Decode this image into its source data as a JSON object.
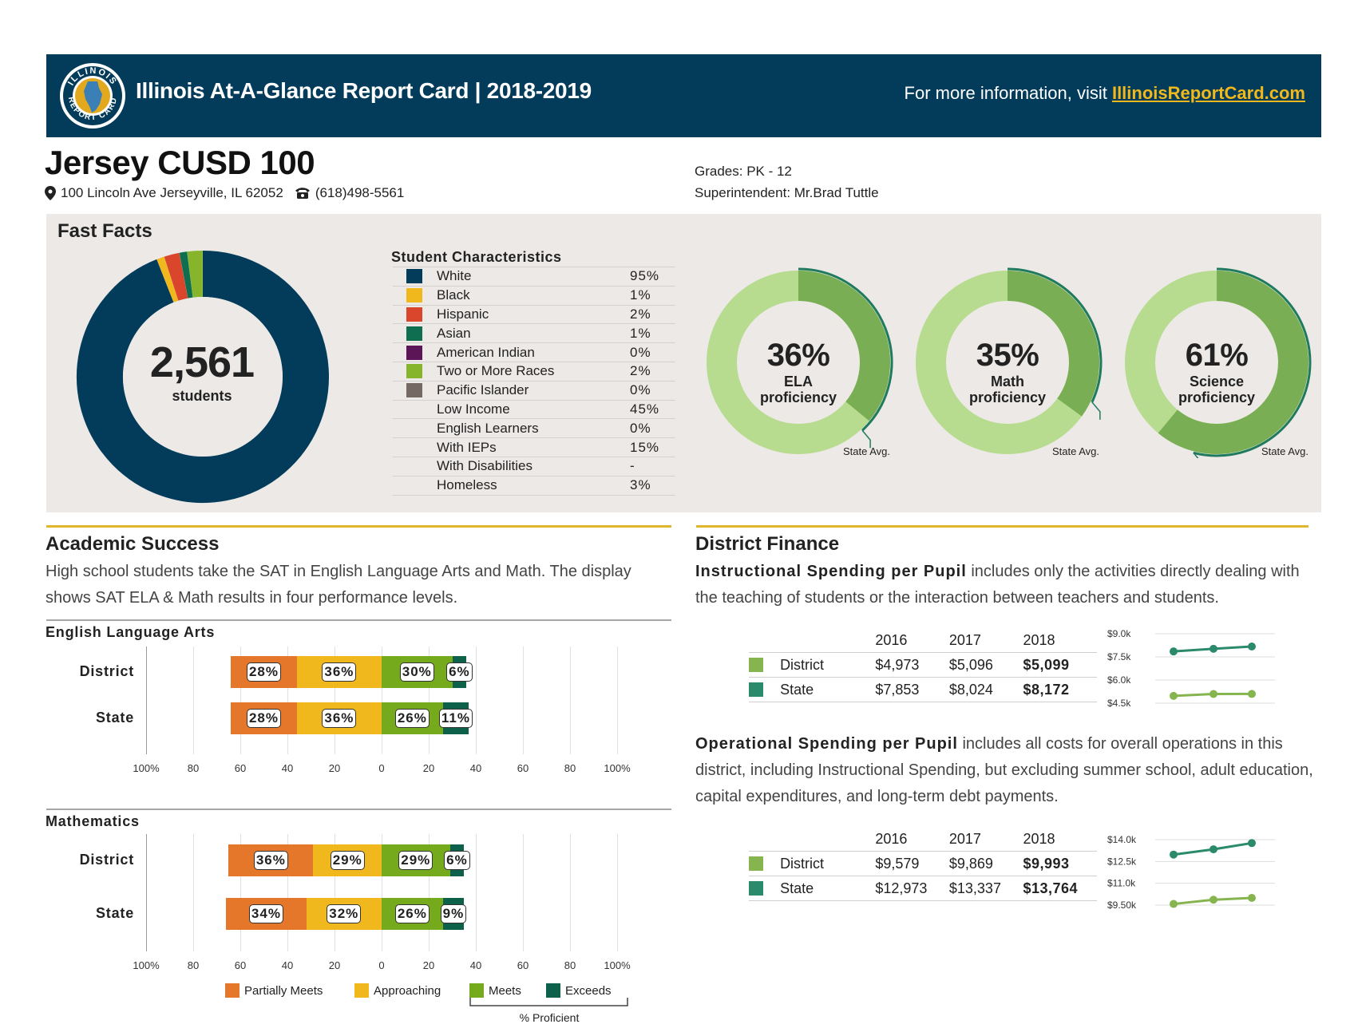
{
  "header": {
    "title": "Illinois At-A-Glance Report Card  |  2018-2019",
    "info_prefix": "For more information, visit ",
    "info_link": "IllinoisReportCard.com",
    "seal_top_text": "ILLINOIS",
    "seal_bottom_text": "REPORT CARD"
  },
  "district": {
    "name": "Jersey CUSD 100",
    "address": "100 Lincoln Ave Jerseyville, IL 62052",
    "phone": "(618)498-5561",
    "grades": "Grades: PK - 12",
    "superintendent": "Superintendent: Mr.Brad Tuttle"
  },
  "fast_facts": {
    "title": "Fast Facts",
    "enrollment": "2,561",
    "enrollment_label": "students",
    "characteristics_title": "Student Characteristics",
    "characteristics": [
      {
        "label": "White",
        "value": "95%",
        "color": "#033c5a"
      },
      {
        "label": "Black",
        "value": "1%",
        "color": "#f0b81c"
      },
      {
        "label": "Hispanic",
        "value": "2%",
        "color": "#d9462b"
      },
      {
        "label": "Asian",
        "value": "1%",
        "color": "#0f6e4f"
      },
      {
        "label": "American Indian",
        "value": "0%",
        "color": "#5c1557"
      },
      {
        "label": "Two or More Races",
        "value": "2%",
        "color": "#86b52b"
      },
      {
        "label": "Pacific Islander",
        "value": "0%",
        "color": "#756a63"
      },
      {
        "label": "Low Income",
        "value": "45%",
        "color": ""
      },
      {
        "label": "English Learners",
        "value": "0%",
        "color": ""
      },
      {
        "label": "With IEPs",
        "value": "15%",
        "color": ""
      },
      {
        "label": "With Disabilities",
        "value": "-",
        "color": ""
      },
      {
        "label": "Homeless",
        "value": "3%",
        "color": ""
      }
    ],
    "proficiency": [
      {
        "pct": "36%",
        "line1": "ELA",
        "line2": "proficiency",
        "value": 36,
        "state_avg": 38,
        "state_label": "State Avg."
      },
      {
        "pct": "35%",
        "line1": "Math",
        "line2": "proficiency",
        "value": 35,
        "state_avg": 32,
        "state_label": "State Avg."
      },
      {
        "pct": "61%",
        "line1": "Science",
        "line2": "proficiency",
        "value": 61,
        "state_avg": 54,
        "state_label": "State Avg."
      }
    ]
  },
  "academic": {
    "title": "Academic Success",
    "description": "High school students take the SAT in English Language Arts and Math. The display shows SAT ELA & Math results in four performance levels.",
    "ticks": [
      "100%",
      "80",
      "60",
      "40",
      "20",
      "0",
      "20",
      "40",
      "60",
      "80",
      "100%"
    ],
    "ela": {
      "title": "English Language Arts",
      "rows": [
        {
          "label": "District",
          "partial": 28,
          "approach": 36,
          "meets": 30,
          "exceeds": 6,
          "partial_txt": "28%",
          "approach_txt": "36%",
          "meets_txt": "30%",
          "exceeds_txt": "6%"
        },
        {
          "label": "State",
          "partial": 28,
          "approach": 36,
          "meets": 26,
          "exceeds": 11,
          "partial_txt": "28%",
          "approach_txt": "36%",
          "meets_txt": "26%",
          "exceeds_txt": "11%"
        }
      ]
    },
    "math": {
      "title": "Mathematics",
      "rows": [
        {
          "label": "District",
          "partial": 36,
          "approach": 29,
          "meets": 29,
          "exceeds": 6,
          "partial_txt": "36%",
          "approach_txt": "29%",
          "meets_txt": "29%",
          "exceeds_txt": "6%"
        },
        {
          "label": "State",
          "partial": 34,
          "approach": 32,
          "meets": 26,
          "exceeds": 9,
          "partial_txt": "34%",
          "approach_txt": "32%",
          "meets_txt": "26%",
          "exceeds_txt": "9%"
        }
      ]
    },
    "legend": [
      {
        "label": "Partially Meets",
        "color": "#e5772a"
      },
      {
        "label": "Approaching",
        "color": "#f0b81c"
      },
      {
        "label": "Meets",
        "color": "#74aa1c"
      },
      {
        "label": "Exceeds",
        "color": "#0d6049"
      }
    ],
    "proficient_label": "% Proficient"
  },
  "finance": {
    "title": "District Finance",
    "instr_bold": "Instructional Spending per Pupil",
    "instr_desc": " includes only the activities directly dealing with the teaching of students or the interaction between teachers and students.",
    "oper_bold": "Operational Spending per Pupil",
    "oper_desc": " includes all costs for overall operations in this district, including Instructional Spending, but excluding summer school, adult education, capital expenditures, and long-term debt payments.",
    "years": [
      "2016",
      "2017",
      "2018"
    ],
    "instr_table": [
      {
        "label": "District",
        "color": "#86b54f",
        "values": [
          "$4,973",
          "$5,096",
          "$5,099"
        ]
      },
      {
        "label": "State",
        "color": "#2a8a6b",
        "values": [
          "$7,853",
          "$8,024",
          "$8,172"
        ]
      }
    ],
    "oper_table": [
      {
        "label": "District",
        "color": "#86b54f",
        "values": [
          "$9,579",
          "$9,869",
          "$9,993"
        ]
      },
      {
        "label": "State",
        "color": "#2a8a6b",
        "values": [
          "$12,973",
          "$13,337",
          "$13,764"
        ]
      }
    ]
  },
  "chart_data": [
    {
      "type": "bar",
      "title": "English Language Arts",
      "categories": [
        "District",
        "State"
      ],
      "series": [
        {
          "name": "Partially Meets",
          "values": [
            28,
            28
          ]
        },
        {
          "name": "Approaching",
          "values": [
            36,
            36
          ]
        },
        {
          "name": "Meets",
          "values": [
            30,
            26
          ]
        },
        {
          "name": "Exceeds",
          "values": [
            6,
            11
          ]
        }
      ],
      "xlabel": "% Proficient",
      "xlim": [
        -100,
        100
      ]
    },
    {
      "type": "bar",
      "title": "Mathematics",
      "categories": [
        "District",
        "State"
      ],
      "series": [
        {
          "name": "Partially Meets",
          "values": [
            36,
            34
          ]
        },
        {
          "name": "Approaching",
          "values": [
            29,
            32
          ]
        },
        {
          "name": "Meets",
          "values": [
            29,
            26
          ]
        },
        {
          "name": "Exceeds",
          "values": [
            6,
            9
          ]
        }
      ],
      "xlabel": "% Proficient",
      "xlim": [
        -100,
        100
      ]
    },
    {
      "type": "line",
      "title": "Instructional Spending per Pupil",
      "x": [
        "2016",
        "2017",
        "2018"
      ],
      "series": [
        {
          "name": "State",
          "values": [
            7853,
            8024,
            8172
          ]
        },
        {
          "name": "District",
          "values": [
            4973,
            5096,
            5099
          ]
        }
      ],
      "yticks": [
        "$9.0k",
        "$7.5k",
        "$6.0k",
        "$4.5k"
      ],
      "ylim": [
        4500,
        9000
      ]
    },
    {
      "type": "line",
      "title": "Operational Spending per Pupil",
      "x": [
        "2016",
        "2017",
        "2018"
      ],
      "series": [
        {
          "name": "State",
          "values": [
            12973,
            13337,
            13764
          ]
        },
        {
          "name": "District",
          "values": [
            9579,
            9869,
            9993
          ]
        }
      ],
      "yticks": [
        "$14.0k",
        "$12.5k",
        "$11.0k",
        "$9.50k"
      ],
      "ylim": [
        9500,
        14000
      ]
    },
    {
      "type": "pie",
      "title": "Student Characteristics",
      "categories": [
        "White",
        "Black",
        "Hispanic",
        "Asian",
        "American Indian",
        "Two or More Races",
        "Pacific Islander"
      ],
      "values": [
        95,
        1,
        2,
        1,
        0,
        2,
        0
      ]
    }
  ]
}
